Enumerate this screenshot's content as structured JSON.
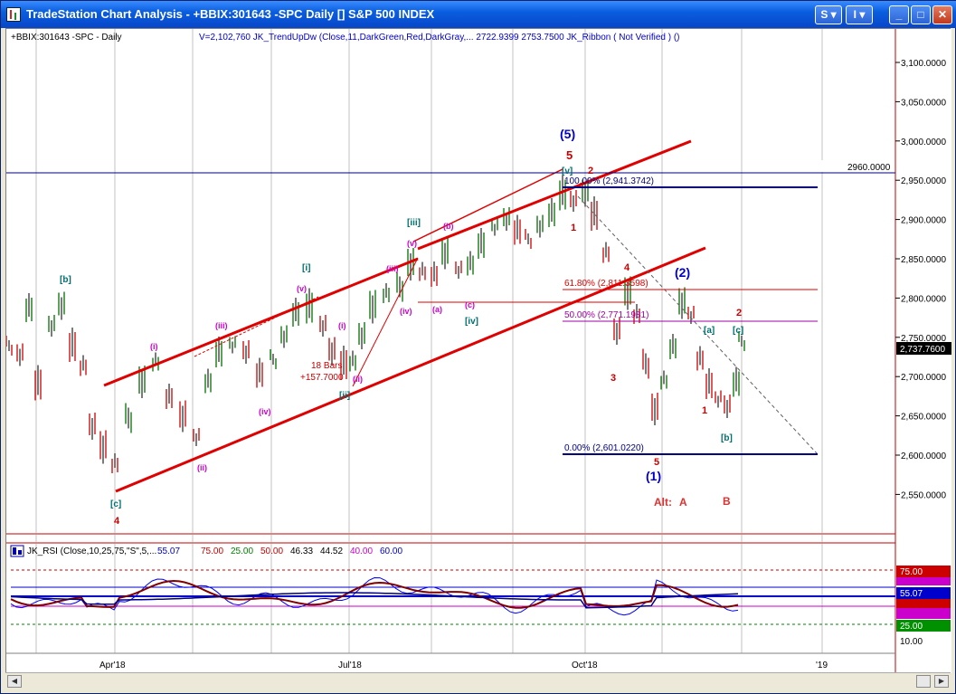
{
  "window": {
    "title": "TradeStation Chart Analysis - +BBIX:301643 -SPC Daily [] S&P 500 INDEX",
    "btn_s": "S",
    "btn_i": "I",
    "btn_min": "_",
    "btn_max": "□",
    "btn_close": "✕",
    "icons": [
      "chart-app-icon",
      "minimize-icon",
      "maximize-icon",
      "close-icon"
    ]
  },
  "chart": {
    "symbol_header": "+BBIX:301643 -SPC - Daily",
    "indicator_header": "V=2,102,760   JK_TrendUpDw (Close,11,DarkGreen,Red,DarkGray,...   2722.9399   2753.7500   JK_Ribbon ( Not Verified ) ()",
    "last_price": "2,737.7600",
    "y_ticks": [
      "3,100.0000",
      "3,050.0000",
      "3,000.0000",
      "2,950.0000",
      "2,900.0000",
      "2,850.0000",
      "2,800.0000",
      "2,750.0000",
      "2,700.0000",
      "2,650.0000",
      "2,600.0000",
      "2,550.0000"
    ],
    "x_ticks": [
      "Apr'18",
      "Jul'18",
      "Oct'18",
      "'19"
    ],
    "hline_label": "2960.0000",
    "fib_labels": {
      "f100": "100.00% (2,941.3742)",
      "f618": "61.80% (2,811.3598)",
      "f500": "50.00% (2,771.1981)",
      "f000": "0.00% (2,601.0220)"
    },
    "bars_note_1": "18 Bars",
    "bars_note_2": "+157.7000"
  },
  "waves": {
    "primary_5": "(5)",
    "primary_1": "(1)",
    "primary_2": "(2)",
    "red_4a": "4",
    "red_5": "5",
    "red_1a": "1",
    "red_2a": "2",
    "red_3": "3",
    "red_4b": "4",
    "red_5b": "5",
    "red_1b": "1",
    "red_2b": "2",
    "alt": "Alt:",
    "alt_a": "A",
    "alt_b": "B",
    "teal_b": "[b]",
    "teal_c": "[c]",
    "teal_i": "[i]",
    "teal_ii": "[ii]",
    "teal_iii": "[iii]",
    "teal_iv": "[iv]",
    "teal_v": "[v]",
    "teal_a2": "[a]",
    "teal_b2": "[b]",
    "teal_c2": "[c]",
    "mag_i": "(i)",
    "mag_ii": "(ii)",
    "mag_iii": "(iii)",
    "mag_iv": "(iv)",
    "mag_v": "(v)",
    "mag_i2": "(i)",
    "mag_ii2": "(ii)",
    "mag_iii2": "(iii)",
    "mag_iv2": "(iv)",
    "mag_v2": "(v)",
    "mag_a": "(a)",
    "mag_b": "(b)",
    "mag_c": "(c)"
  },
  "rsi": {
    "header_name": "JK_RSI (Close,10,25,75,\"S\",5,...",
    "v1": "55.07",
    "v2": "75.00",
    "v3": "25.00",
    "v4": "50.00",
    "v5": "46.33",
    "v6": "44.52",
    "v7": "40.00",
    "v8": "60.00",
    "y_ticks": [
      "75.00",
      "55.07",
      "25.00",
      "10.00"
    ],
    "colors": {
      "v1": "#0000cc",
      "v2": "#cc0000",
      "v3": "#008000",
      "v4": "#cc0000",
      "v5": "#000000",
      "v6": "#000000",
      "v7": "#cc00cc",
      "v8": "#0000cc"
    }
  },
  "colors": {
    "channel": "#e00000",
    "fib": "#000080",
    "teal": "#007070",
    "magenta": "#cc00cc",
    "red_label": "#cc0000",
    "blue_label": "#0000cc"
  }
}
